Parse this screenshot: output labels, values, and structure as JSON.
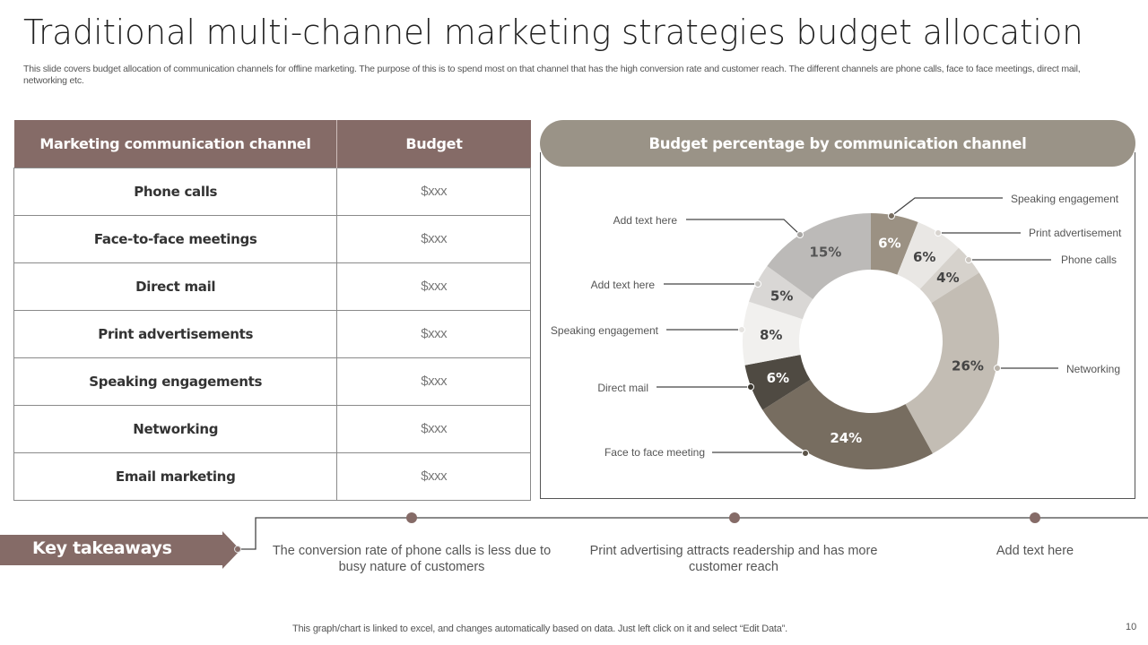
{
  "title": "Traditional multi-channel marketing strategies budget allocation",
  "subtitle": "This slide covers budget allocation of  communication channels for offline marketing. The purpose of this is to spend most on that channel that has the high conversion rate and customer reach. The different channels are phone calls, face to face meetings, direct mail, networking etc.",
  "table": {
    "headers": [
      "Marketing communication channel",
      "Budget"
    ],
    "rows": [
      {
        "channel": "Phone calls",
        "budget": "$xxx"
      },
      {
        "channel": "Face-to-face meetings",
        "budget": "$xxx"
      },
      {
        "channel": "Direct mail",
        "budget": "$xxx"
      },
      {
        "channel": "Print advertisements",
        "budget": "$xxx"
      },
      {
        "channel": "Speaking engagements",
        "budget": "$xxx"
      },
      {
        "channel": "Networking",
        "budget": "$xxx"
      },
      {
        "channel": "Email marketing",
        "budget": "$xxx"
      }
    ],
    "header_color": "#856b67"
  },
  "chart_panel": {
    "title": "Budget percentage by communication channel",
    "header_color": "#9a9387"
  },
  "chart_data": {
    "type": "pie",
    "subtype": "donut",
    "title": "Budget percentage by communication channel",
    "start_angle_deg": 0,
    "direction": "clockwise",
    "series": [
      {
        "name": "Speaking engagement",
        "value": 6,
        "label": "6%",
        "color": "#9b9183",
        "label_color": "#ffffff"
      },
      {
        "name": "Print advertisement",
        "value": 6,
        "label": "6%",
        "color": "#e9e7e4",
        "label_color": "#444444"
      },
      {
        "name": "Phone calls",
        "value": 4,
        "label": "4%",
        "color": "#d6d2cc",
        "label_color": "#444444"
      },
      {
        "name": "Networking",
        "value": 26,
        "label": "26%",
        "color": "#c3bdb4",
        "label_color": "#444444"
      },
      {
        "name": "Face to face meeting",
        "value": 24,
        "label": "24%",
        "color": "#776d60",
        "label_color": "#ffffff"
      },
      {
        "name": "Direct mail",
        "value": 6,
        "label": "6%",
        "color": "#4f4a42",
        "label_color": "#ffffff"
      },
      {
        "name": "Speaking engagement",
        "value": 8,
        "label": "8%",
        "color": "#f1f0ee",
        "label_color": "#444444"
      },
      {
        "name": "Add text here",
        "value": 5,
        "label": "5%",
        "color": "#d9d7d5",
        "label_color": "#444444"
      },
      {
        "name": "Add text here",
        "value": 15,
        "label": "15%",
        "color": "#bcbab8",
        "label_color": "#555555"
      }
    ],
    "legend_position": "callouts"
  },
  "key_takeaways": {
    "label": "Key takeaways",
    "color": "#856b67",
    "items": [
      "The conversion rate of phone calls is less due to busy nature of customers",
      "Print advertising attracts readership and has more customer reach",
      "Add text here"
    ]
  },
  "footer": {
    "note": "This graph/chart is linked to excel, and changes automatically based on data. Just left click on it and select “Edit Data”.",
    "page_number": "10"
  }
}
